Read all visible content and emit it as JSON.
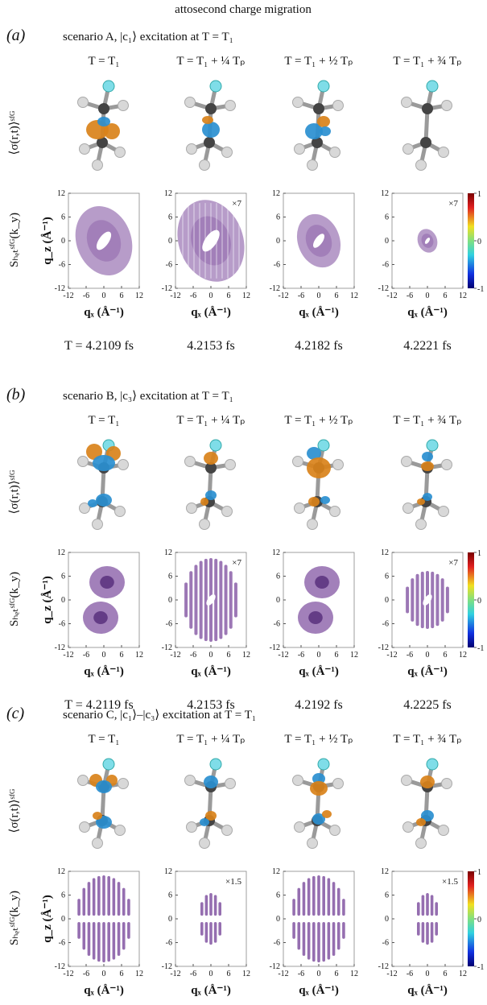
{
  "title": "attosecond charge migration",
  "panels": [
    {
      "label": "(a)",
      "scenario": "scenario A, |c₁⟩ excitation at T = T₁",
      "row_label_top": "⟨σ(r,t)⟩ˢᶠᴳ",
      "row_label_bottom": "Sₕₑₜˢᶠᴳ(k_y)",
      "axis": {
        "ticks": [
          -12,
          -6,
          0,
          6,
          12
        ],
        "x_label": "qₓ (Å⁻¹)",
        "y_label": "q_z (Å⁻¹)"
      },
      "colorbar_ticks": [
        1,
        0,
        -1
      ],
      "plots": [
        {
          "time_header": "T = T₁",
          "timestamp": "T = 4.2109 fs"
        },
        {
          "time_header": "T = T₁ + ¼ Tₚ",
          "scale": "×7",
          "timestamp": "4.2153 fs"
        },
        {
          "time_header": "T = T₁ + ½ Tₚ",
          "timestamp": "4.2182 fs"
        },
        {
          "time_header": "T = T₁ + ¾ Tₚ",
          "scale": "×7",
          "timestamp": "4.2221 fs"
        }
      ]
    },
    {
      "label": "(b)",
      "scenario": "scenario B, |c₃⟩ excitation at T = T₁",
      "row_label_top": "⟨σ(r,t)⟩ˢᶠᴳ",
      "row_label_bottom": "Sₕₑₜˢᶠᴳ(k_y)",
      "axis": {
        "ticks": [
          -12,
          -6,
          0,
          6,
          12
        ],
        "x_label": "qₓ (Å⁻¹)",
        "y_label": "q_z (Å⁻¹)"
      },
      "colorbar_ticks": [
        1,
        0,
        -1
      ],
      "plots": [
        {
          "time_header": "T = T₁",
          "timestamp": "T = 4.2119 fs"
        },
        {
          "time_header": "T = T₁ + ¼ Tₚ",
          "scale": "×7",
          "timestamp": "4.2153 fs"
        },
        {
          "time_header": "T = T₁ + ½ Tₚ",
          "timestamp": "4.2192 fs"
        },
        {
          "time_header": "T = T₁ + ¾ Tₚ",
          "scale": "×7",
          "timestamp": "4.2225 fs"
        }
      ]
    },
    {
      "label": "(c)",
      "scenario": "scenario C, |c₁⟩–|c₃⟩ excitation at T = T₁",
      "row_label_top": "⟨σ(r,t)⟩ˢᶠᴳ",
      "row_label_bottom": "Sₕₑₜˢᶠᴳ(k_y)",
      "axis": {
        "ticks": [
          -12,
          -6,
          0,
          6,
          12
        ],
        "x_label": "qₓ (Å⁻¹)",
        "y_label": "q_z (Å⁻¹)"
      },
      "colorbar_ticks": [
        1,
        0,
        -1
      ],
      "plots": [
        {
          "time_header": "T = T₁"
        },
        {
          "time_header": "T = T₁ + ¼ Tₚ",
          "scale": "×1.5"
        },
        {
          "time_header": "T = T₁ + ½ Tₚ"
        },
        {
          "time_header": "T = T₁ + ¾ Tₚ",
          "scale": "×1.5"
        }
      ]
    }
  ]
}
